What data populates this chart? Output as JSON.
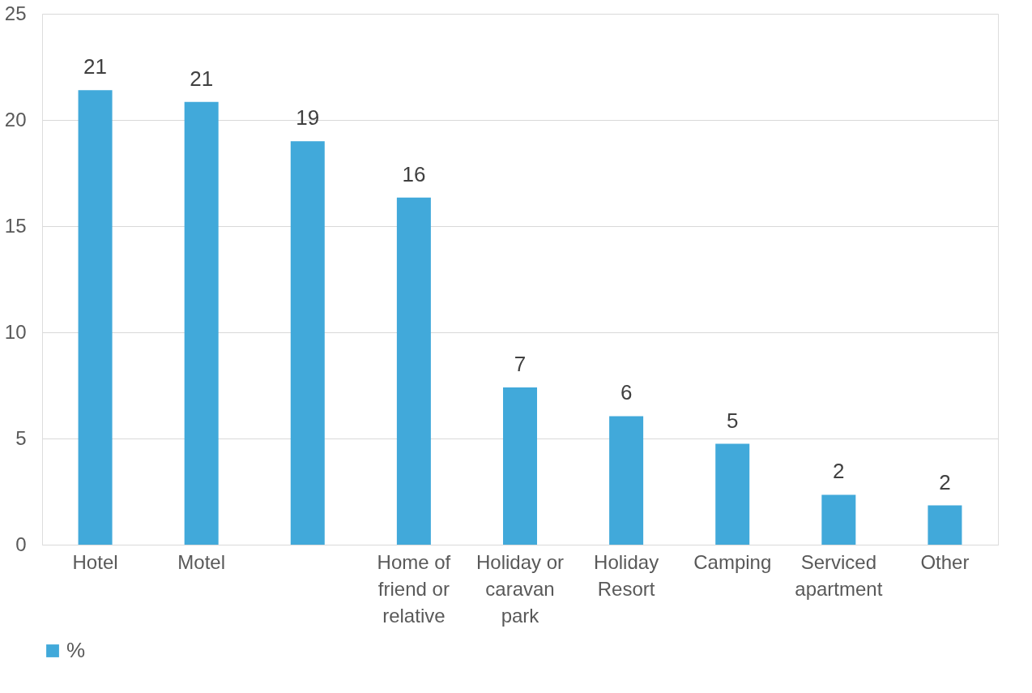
{
  "chart_data": {
    "type": "bar",
    "categories": [
      "Hotel",
      "Motel",
      null,
      "Home of friend or relative",
      "Holiday or caravan park",
      "Holiday Resort",
      "Camping",
      "Serviced apartment",
      "Other"
    ],
    "series": [
      {
        "name": "%",
        "color": "#41a9da",
        "values": [
          21.4,
          20.85,
          19.0,
          16.35,
          7.4,
          6.05,
          4.75,
          2.35,
          1.85
        ],
        "value_labels": [
          "21",
          "21",
          "19",
          "16",
          "7",
          "6",
          "5",
          "2",
          "2"
        ]
      }
    ],
    "ylim": [
      0,
      25
    ],
    "yticks": [
      0,
      5,
      10,
      15,
      20,
      25
    ],
    "grid": "y",
    "legend": "bottom"
  }
}
